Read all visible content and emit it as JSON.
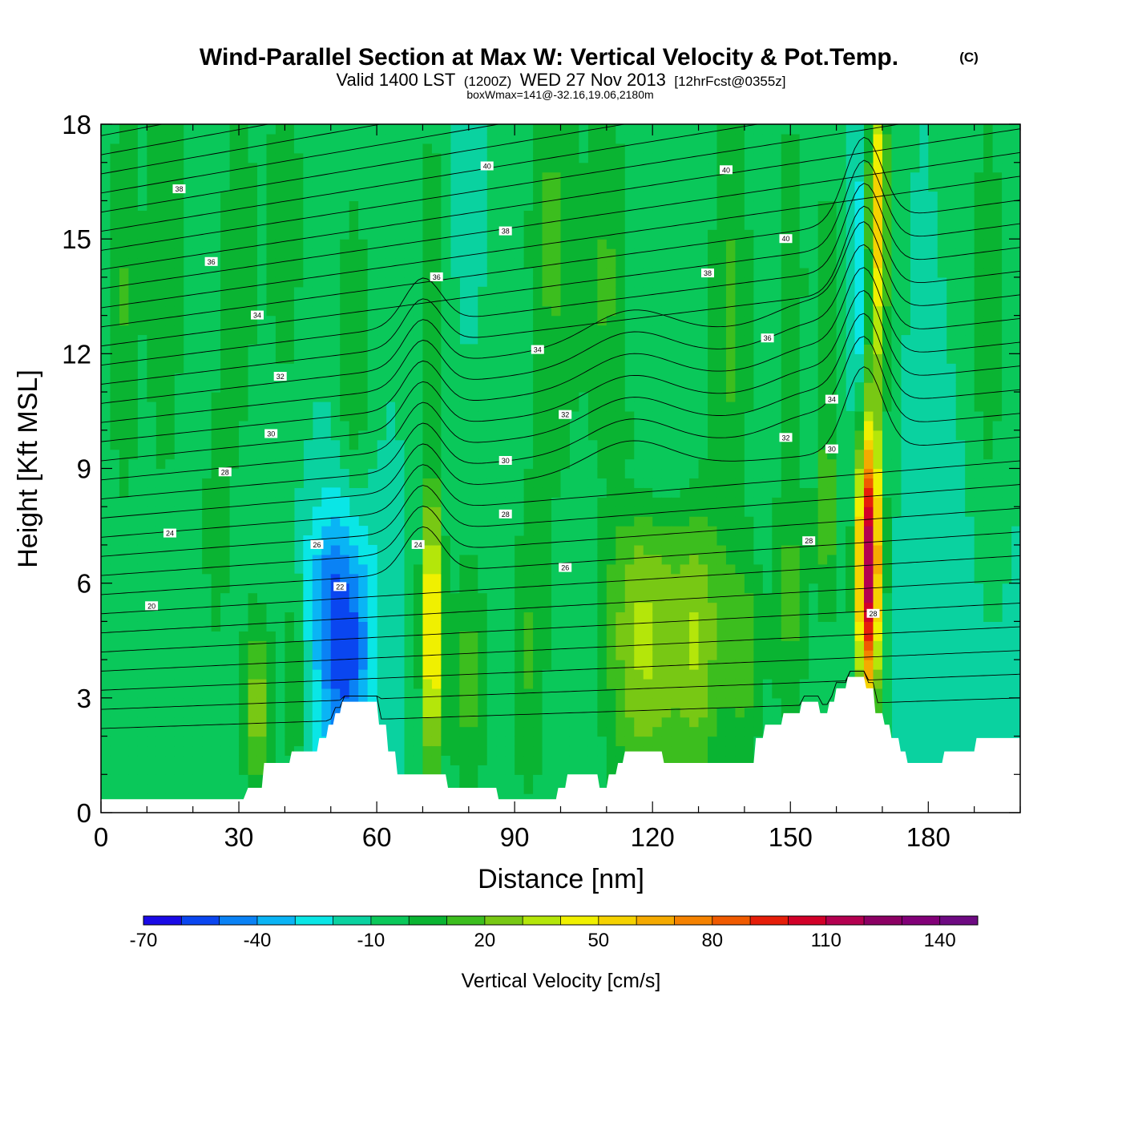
{
  "title": {
    "main": "Wind-Parallel Section at Max W: Vertical Velocity & Pot.Temp.",
    "copyright": "(C)",
    "valid_prefix": "Valid 1400 LST",
    "valid_utc": "(1200Z)",
    "valid_date": "WED 27 Nov 2013",
    "forecast": "[12hrFcst@0355z]",
    "box_wmax": "boxWmax=141@-32.16,19.06,2180m"
  },
  "chart_data": {
    "type": "heatmap",
    "xlabel": "Distance [nm]",
    "ylabel": "Height [Kft MSL]",
    "xlim": [
      0,
      200
    ],
    "ylim": [
      0,
      18
    ],
    "x_ticks": [
      0,
      30,
      60,
      90,
      120,
      150,
      180
    ],
    "x_tick_labels": [
      "0",
      "30",
      "60",
      "90",
      "120",
      "150",
      "180"
    ],
    "y_ticks": [
      0,
      3,
      6,
      9,
      12,
      15,
      18
    ],
    "y_tick_labels": [
      "0",
      "3",
      "6",
      "9",
      "12",
      "15",
      "18"
    ],
    "background_value": -10,
    "colorbar": {
      "title": "Vertical Velocity [cm/s]",
      "min": -70,
      "max": 150,
      "step": 10,
      "tick_values": [
        -70,
        -40,
        -10,
        20,
        50,
        80,
        110,
        140
      ],
      "tick_labels": [
        "-70",
        "-40",
        "-10",
        "20",
        "50",
        "80",
        "110",
        "140"
      ],
      "colors": [
        "#1a0ae6",
        "#0a46f0",
        "#0a82f5",
        "#0ab4f5",
        "#0ae6e6",
        "#0ad2a0",
        "#0ac85a",
        "#0ab432",
        "#3cbe1e",
        "#78c814",
        "#b4e60a",
        "#f0f000",
        "#f5d200",
        "#f5aa00",
        "#f58200",
        "#f05a00",
        "#e61e0a",
        "#d20028",
        "#b40050",
        "#8c0064",
        "#820078",
        "#6e0a82"
      ]
    },
    "terrain_kft": [
      [
        0,
        0.35
      ],
      [
        30,
        0.35
      ],
      [
        31,
        0.35
      ],
      [
        32,
        0.65
      ],
      [
        35,
        0.65
      ],
      [
        35.5,
        1.3
      ],
      [
        41,
        1.3
      ],
      [
        41.5,
        1.6
      ],
      [
        47,
        1.6
      ],
      [
        47.5,
        1.95
      ],
      [
        49,
        1.95
      ],
      [
        49.5,
        2.3
      ],
      [
        50.5,
        2.3
      ],
      [
        51,
        2.6
      ],
      [
        52,
        2.6
      ],
      [
        52.5,
        2.9
      ],
      [
        60,
        2.9
      ],
      [
        60.5,
        2.3
      ],
      [
        62,
        2.3
      ],
      [
        62.5,
        1.6
      ],
      [
        64,
        1.6
      ],
      [
        64.5,
        1.0
      ],
      [
        75,
        1.0
      ],
      [
        75.5,
        0.65
      ],
      [
        86,
        0.65
      ],
      [
        86.5,
        0.35
      ],
      [
        99,
        0.35
      ],
      [
        99.5,
        0.65
      ],
      [
        101,
        0.65
      ],
      [
        101.5,
        1.0
      ],
      [
        108,
        1.0
      ],
      [
        108.5,
        0.65
      ],
      [
        110,
        0.65
      ],
      [
        110.5,
        1.0
      ],
      [
        112,
        1.0
      ],
      [
        112.5,
        1.3
      ],
      [
        113.5,
        1.3
      ],
      [
        114,
        1.6
      ],
      [
        122,
        1.6
      ],
      [
        122.5,
        1.3
      ],
      [
        142,
        1.3
      ],
      [
        142.5,
        1.95
      ],
      [
        144,
        1.95
      ],
      [
        144.5,
        2.3
      ],
      [
        148,
        2.3
      ],
      [
        148.5,
        2.6
      ],
      [
        152,
        2.6
      ],
      [
        152.5,
        2.9
      ],
      [
        156,
        2.9
      ],
      [
        156.5,
        2.6
      ],
      [
        158,
        2.6
      ],
      [
        158.5,
        2.9
      ],
      [
        159.5,
        2.9
      ],
      [
        160,
        3.25
      ],
      [
        162,
        3.25
      ],
      [
        162.5,
        3.55
      ],
      [
        166,
        3.55
      ],
      [
        166.5,
        3.25
      ],
      [
        168,
        3.25
      ],
      [
        168.5,
        2.6
      ],
      [
        170,
        2.6
      ],
      [
        170.5,
        2.3
      ],
      [
        171.5,
        2.3
      ],
      [
        172,
        1.95
      ],
      [
        173.5,
        1.95
      ],
      [
        174,
        1.6
      ],
      [
        175,
        1.6
      ],
      [
        175.5,
        1.3
      ],
      [
        183,
        1.3
      ],
      [
        183.5,
        1.6
      ],
      [
        190,
        1.6
      ],
      [
        190.5,
        1.95
      ],
      [
        200,
        1.95
      ]
    ],
    "vertical_velocity_features": [
      {
        "x": 5,
        "y": 13.5,
        "sx": 2.5,
        "sy": 4.5,
        "value": 10
      },
      {
        "x": 14,
        "y": 15.0,
        "sx": 3.0,
        "sy": 5.0,
        "value": 11
      },
      {
        "x": 30,
        "y": 14.5,
        "sx": 3.0,
        "sy": 4.0,
        "value": 8
      },
      {
        "x": 40,
        "y": 15.5,
        "sx": 3.0,
        "sy": 3.5,
        "value": 9
      },
      {
        "x": 55,
        "y": 12.0,
        "sx": 2.5,
        "sy": 3.5,
        "value": 10
      },
      {
        "x": 72,
        "y": 14.5,
        "sx": 2.5,
        "sy": 3.0,
        "value": 8
      },
      {
        "x": 77,
        "y": 16.5,
        "sx": 2.0,
        "sy": 2.0,
        "value": -15
      },
      {
        "x": 98,
        "y": 15.0,
        "sx": 4.0,
        "sy": 5.0,
        "value": 12
      },
      {
        "x": 110,
        "y": 14.0,
        "sx": 3.5,
        "sy": 4.0,
        "value": 11
      },
      {
        "x": 137,
        "y": 13.0,
        "sx": 3.5,
        "sy": 4.5,
        "value": 12
      },
      {
        "x": 150,
        "y": 14.0,
        "sx": 2.5,
        "sy": 3.5,
        "value": 9
      },
      {
        "x": 158,
        "y": 13.0,
        "sx": 2.0,
        "sy": 3.0,
        "value": 8
      },
      {
        "x": 193,
        "y": 13.5,
        "sx": 2.5,
        "sy": 4.0,
        "value": 9
      },
      {
        "x": 25,
        "y": 7.5,
        "sx": 2.0,
        "sy": 2.5,
        "value": 8
      },
      {
        "x": 28,
        "y": 10.0,
        "sx": 1.5,
        "sy": 1.5,
        "value": -8
      },
      {
        "x": 34,
        "y": 2.8,
        "sx": 2.5,
        "sy": 1.8,
        "value": 25
      },
      {
        "x": 42,
        "y": 3.5,
        "sx": 1.5,
        "sy": 2.0,
        "value": 12
      },
      {
        "x": 53,
        "y": 4.2,
        "sx": 4.5,
        "sy": 2.5,
        "value": -55
      },
      {
        "x": 50,
        "y": 6.3,
        "sx": 5.0,
        "sy": 1.5,
        "value": -22
      },
      {
        "x": 72,
        "y": 4.8,
        "sx": 1.6,
        "sy": 2.6,
        "value": 60
      },
      {
        "x": 80,
        "y": 3.5,
        "sx": 3.0,
        "sy": 2.5,
        "value": 14
      },
      {
        "x": 93,
        "y": 4.0,
        "sx": 3.0,
        "sy": 3.0,
        "value": 10
      },
      {
        "x": 102,
        "y": 9.0,
        "sx": 2.5,
        "sy": 1.5,
        "value": -8
      },
      {
        "x": 118,
        "y": 4.5,
        "sx": 6.0,
        "sy": 3.0,
        "value": 32
      },
      {
        "x": 130,
        "y": 4.5,
        "sx": 4.0,
        "sy": 2.8,
        "value": 24
      },
      {
        "x": 120,
        "y": 8.5,
        "sx": 9.0,
        "sy": 0.8,
        "value": -18
      },
      {
        "x": 140,
        "y": 4.0,
        "sx": 3.0,
        "sy": 2.0,
        "value": 14
      },
      {
        "x": 150,
        "y": 5.5,
        "sx": 3.0,
        "sy": 2.5,
        "value": 12
      },
      {
        "x": 158,
        "y": 7.5,
        "sx": 1.8,
        "sy": 2.0,
        "value": 12
      },
      {
        "x": 167,
        "y": 6.5,
        "sx": 1.8,
        "sy": 2.6,
        "value": 120
      },
      {
        "x": 169,
        "y": 15.5,
        "sx": 1.5,
        "sy": 3.0,
        "value": 55
      },
      {
        "x": 165,
        "y": 13.5,
        "sx": 1.4,
        "sy": 3.0,
        "value": -30
      },
      {
        "x": 185,
        "y": 5.0,
        "sx": 7.0,
        "sy": 2.5,
        "value": -14
      }
    ],
    "potential_temperature_contours": {
      "label": "Pot.Temp.",
      "base_levels": [
        20,
        24,
        28,
        32,
        36,
        40
      ],
      "clabels": [
        {
          "x": 11,
          "y": 5.4,
          "text": "20"
        },
        {
          "x": 15,
          "y": 7.3,
          "text": "24"
        },
        {
          "x": 27,
          "y": 8.9,
          "text": "28"
        },
        {
          "x": 37,
          "y": 9.9,
          "text": "30"
        },
        {
          "x": 39,
          "y": 11.4,
          "text": "32"
        },
        {
          "x": 34,
          "y": 13.0,
          "text": "34"
        },
        {
          "x": 24,
          "y": 14.4,
          "text": "36"
        },
        {
          "x": 17,
          "y": 16.3,
          "text": "38"
        },
        {
          "x": 47,
          "y": 7.0,
          "text": "26"
        },
        {
          "x": 52,
          "y": 5.9,
          "text": "22"
        },
        {
          "x": 69,
          "y": 7.0,
          "text": "24"
        },
        {
          "x": 73,
          "y": 14.0,
          "text": "36"
        },
        {
          "x": 88,
          "y": 7.8,
          "text": "28"
        },
        {
          "x": 88,
          "y": 9.2,
          "text": "30"
        },
        {
          "x": 95,
          "y": 12.1,
          "text": "34"
        },
        {
          "x": 101,
          "y": 10.4,
          "text": "32"
        },
        {
          "x": 88,
          "y": 15.2,
          "text": "38"
        },
        {
          "x": 84,
          "y": 16.9,
          "text": "40"
        },
        {
          "x": 101,
          "y": 6.4,
          "text": "26"
        },
        {
          "x": 132,
          "y": 14.1,
          "text": "38"
        },
        {
          "x": 136,
          "y": 16.8,
          "text": "40"
        },
        {
          "x": 145,
          "y": 12.4,
          "text": "36"
        },
        {
          "x": 149,
          "y": 15.0,
          "text": "40"
        },
        {
          "x": 149,
          "y": 9.8,
          "text": "32"
        },
        {
          "x": 154,
          "y": 7.1,
          "text": "28"
        },
        {
          "x": 159,
          "y": 10.8,
          "text": "34"
        },
        {
          "x": 159,
          "y": 9.5,
          "text": "30"
        },
        {
          "x": 168,
          "y": 5.2,
          "text": "28"
        }
      ]
    }
  }
}
